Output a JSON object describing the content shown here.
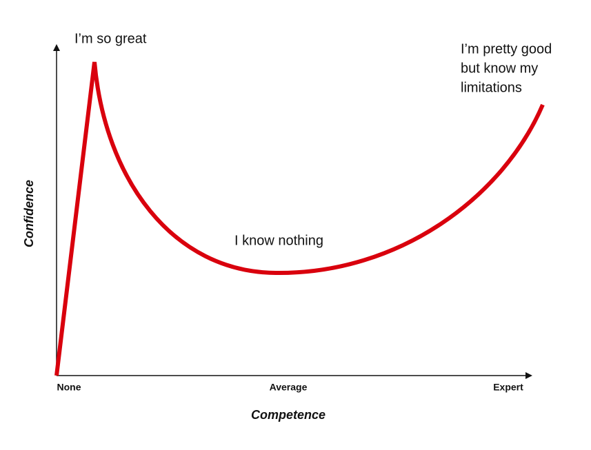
{
  "axes": {
    "x_label": "Competence",
    "y_label": "Confidence",
    "x_ticks": [
      "None",
      "Average",
      "Expert"
    ]
  },
  "annotations": [
    [
      "I’m so great"
    ],
    [
      "I know nothing"
    ],
    [
      "I’m pretty good",
      "but know my",
      "limitations"
    ]
  ]
}
